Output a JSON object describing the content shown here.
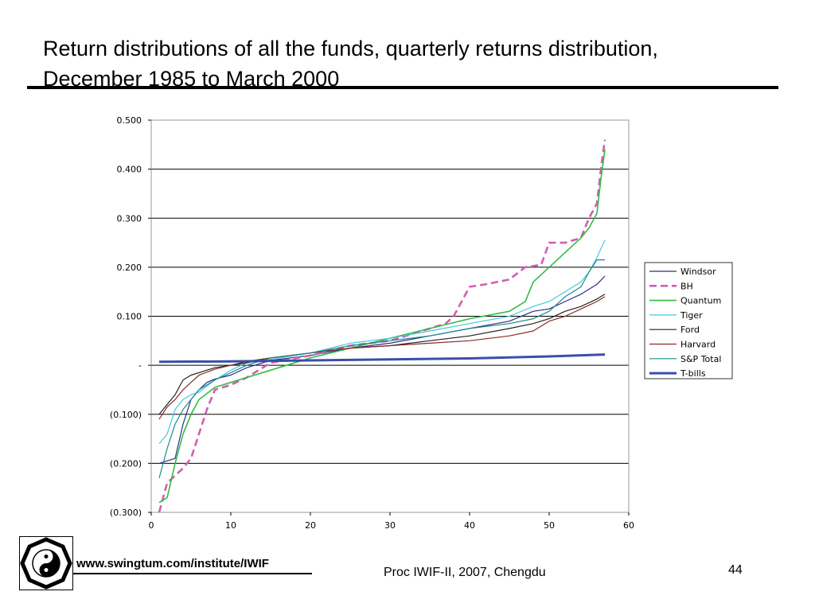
{
  "slide": {
    "title": "Return distributions of all the funds, quarterly returns distribution, December 1985 to March 2000",
    "footer_url": "www.swingtum.com/institute/IWIF",
    "footer_conf": "Proc IWIF-II, 2007, Chengdu",
    "page_number": "44",
    "logo_icon": "yin-yang-bagua-logo-icon"
  },
  "chart_data": {
    "type": "line",
    "title": "",
    "xlabel": "",
    "ylabel": "",
    "xlim": [
      0,
      60
    ],
    "ylim": [
      -0.3,
      0.5
    ],
    "x_ticks": [
      {
        "value": 0,
        "label": "0"
      },
      {
        "value": 10,
        "label": "10"
      },
      {
        "value": 20,
        "label": "20"
      },
      {
        "value": 30,
        "label": "30"
      },
      {
        "value": 40,
        "label": "40"
      },
      {
        "value": 50,
        "label": "50"
      },
      {
        "value": 60,
        "label": "60"
      }
    ],
    "y_ticks": [
      {
        "value": 0.5,
        "label": "0.500"
      },
      {
        "value": 0.4,
        "label": "0.400"
      },
      {
        "value": 0.3,
        "label": "0.300"
      },
      {
        "value": 0.2,
        "label": "0.200"
      },
      {
        "value": 0.1,
        "label": "0.100"
      },
      {
        "value": 0,
        "label": "-"
      },
      {
        "value": -0.1,
        "label": "(0.100)"
      },
      {
        "value": -0.2,
        "label": "(0.200)"
      },
      {
        "value": -0.3,
        "label": "(0.300)"
      }
    ],
    "grid": "horizontal",
    "legend_position": "right",
    "series": [
      {
        "name": "Windsor",
        "color": "#2e2e8a",
        "dash": "",
        "width": 1.2,
        "points": [
          [
            1,
            -0.2
          ],
          [
            2,
            -0.195
          ],
          [
            3,
            -0.19
          ],
          [
            4,
            -0.12
          ],
          [
            5,
            -0.07
          ],
          [
            6,
            -0.05
          ],
          [
            7,
            -0.035
          ],
          [
            8,
            -0.028
          ],
          [
            10,
            -0.02
          ],
          [
            12,
            -0.005
          ],
          [
            15,
            0.01
          ],
          [
            20,
            0.02
          ],
          [
            25,
            0.035
          ],
          [
            30,
            0.045
          ],
          [
            35,
            0.06
          ],
          [
            40,
            0.075
          ],
          [
            45,
            0.09
          ],
          [
            48,
            0.11
          ],
          [
            50,
            0.115
          ],
          [
            52,
            0.13
          ],
          [
            54,
            0.145
          ],
          [
            56,
            0.165
          ],
          [
            57,
            0.182
          ]
        ]
      },
      {
        "name": "BH",
        "color": "#d060b0",
        "dash": "9,5",
        "width": 2.6,
        "points": [
          [
            1,
            -0.3
          ],
          [
            2,
            -0.24
          ],
          [
            3,
            -0.225
          ],
          [
            4,
            -0.21
          ],
          [
            5,
            -0.19
          ],
          [
            6,
            -0.14
          ],
          [
            7,
            -0.09
          ],
          [
            8,
            -0.05
          ],
          [
            10,
            -0.04
          ],
          [
            12,
            -0.025
          ],
          [
            15,
            0.005
          ],
          [
            20,
            0.02
          ],
          [
            25,
            0.04
          ],
          [
            30,
            0.05
          ],
          [
            34,
            0.07
          ],
          [
            37,
            0.085
          ],
          [
            38,
            0.1
          ],
          [
            39,
            0.13
          ],
          [
            40,
            0.16
          ],
          [
            42,
            0.165
          ],
          [
            45,
            0.175
          ],
          [
            47,
            0.2
          ],
          [
            49,
            0.205
          ],
          [
            50,
            0.25
          ],
          [
            52,
            0.25
          ],
          [
            54,
            0.26
          ],
          [
            55,
            0.3
          ],
          [
            56,
            0.33
          ],
          [
            56.5,
            0.4
          ],
          [
            57,
            0.46
          ]
        ]
      },
      {
        "name": "Quantum",
        "color": "#33bb44",
        "dash": "",
        "width": 1.6,
        "points": [
          [
            1,
            -0.28
          ],
          [
            2,
            -0.27
          ],
          [
            3,
            -0.2
          ],
          [
            4,
            -0.14
          ],
          [
            5,
            -0.1
          ],
          [
            6,
            -0.07
          ],
          [
            8,
            -0.045
          ],
          [
            10,
            -0.035
          ],
          [
            12,
            -0.025
          ],
          [
            15,
            -0.01
          ],
          [
            20,
            0.015
          ],
          [
            25,
            0.035
          ],
          [
            30,
            0.055
          ],
          [
            35,
            0.075
          ],
          [
            40,
            0.095
          ],
          [
            45,
            0.11
          ],
          [
            47,
            0.13
          ],
          [
            48,
            0.17
          ],
          [
            50,
            0.2
          ],
          [
            52,
            0.23
          ],
          [
            54,
            0.26
          ],
          [
            55,
            0.28
          ],
          [
            56,
            0.31
          ],
          [
            56.5,
            0.38
          ],
          [
            57,
            0.44
          ]
        ]
      },
      {
        "name": "Tiger",
        "color": "#44c8e0",
        "dash": "",
        "width": 1.2,
        "points": [
          [
            1,
            -0.16
          ],
          [
            2,
            -0.14
          ],
          [
            3,
            -0.09
          ],
          [
            4,
            -0.07
          ],
          [
            5,
            -0.06
          ],
          [
            6,
            -0.055
          ],
          [
            8,
            -0.03
          ],
          [
            10,
            -0.01
          ],
          [
            12,
            0.005
          ],
          [
            15,
            0.012
          ],
          [
            20,
            0.025
          ],
          [
            25,
            0.045
          ],
          [
            30,
            0.055
          ],
          [
            35,
            0.07
          ],
          [
            40,
            0.085
          ],
          [
            45,
            0.1
          ],
          [
            48,
            0.12
          ],
          [
            50,
            0.13
          ],
          [
            52,
            0.15
          ],
          [
            54,
            0.17
          ],
          [
            55,
            0.19
          ],
          [
            56,
            0.22
          ],
          [
            57,
            0.255
          ]
        ]
      },
      {
        "name": "Ford",
        "color": "#222222",
        "dash": "",
        "width": 1.2,
        "points": [
          [
            1,
            -0.1
          ],
          [
            2,
            -0.08
          ],
          [
            3,
            -0.06
          ],
          [
            4,
            -0.03
          ],
          [
            5,
            -0.02
          ],
          [
            6,
            -0.015
          ],
          [
            8,
            -0.005
          ],
          [
            10,
            0.0
          ],
          [
            12,
            0.005
          ],
          [
            15,
            0.015
          ],
          [
            20,
            0.025
          ],
          [
            25,
            0.035
          ],
          [
            30,
            0.04
          ],
          [
            35,
            0.05
          ],
          [
            40,
            0.06
          ],
          [
            45,
            0.075
          ],
          [
            48,
            0.085
          ],
          [
            50,
            0.095
          ],
          [
            52,
            0.11
          ],
          [
            54,
            0.12
          ],
          [
            56,
            0.135
          ],
          [
            57,
            0.145
          ]
        ]
      },
      {
        "name": "Harvard",
        "color": "#8b2a2a",
        "dash": "",
        "width": 1.2,
        "points": [
          [
            1,
            -0.11
          ],
          [
            2,
            -0.085
          ],
          [
            3,
            -0.07
          ],
          [
            4,
            -0.05
          ],
          [
            5,
            -0.035
          ],
          [
            6,
            -0.02
          ],
          [
            8,
            -0.008
          ],
          [
            10,
            0.0
          ],
          [
            12,
            0.008
          ],
          [
            15,
            0.015
          ],
          [
            20,
            0.025
          ],
          [
            25,
            0.035
          ],
          [
            30,
            0.04
          ],
          [
            35,
            0.045
          ],
          [
            40,
            0.05
          ],
          [
            45,
            0.06
          ],
          [
            48,
            0.07
          ],
          [
            50,
            0.09
          ],
          [
            52,
            0.1
          ],
          [
            54,
            0.115
          ],
          [
            56,
            0.13
          ],
          [
            57,
            0.14
          ]
        ]
      },
      {
        "name": "S&P Total",
        "color": "#1f8a8a",
        "dash": "",
        "width": 1.2,
        "points": [
          [
            1,
            -0.23
          ],
          [
            2,
            -0.17
          ],
          [
            3,
            -0.12
          ],
          [
            4,
            -0.09
          ],
          [
            5,
            -0.07
          ],
          [
            6,
            -0.05
          ],
          [
            8,
            -0.03
          ],
          [
            10,
            -0.015
          ],
          [
            12,
            0.0
          ],
          [
            15,
            0.015
          ],
          [
            20,
            0.025
          ],
          [
            25,
            0.04
          ],
          [
            30,
            0.05
          ],
          [
            35,
            0.06
          ],
          [
            40,
            0.075
          ],
          [
            45,
            0.085
          ],
          [
            48,
            0.095
          ],
          [
            50,
            0.11
          ],
          [
            52,
            0.14
          ],
          [
            54,
            0.16
          ],
          [
            55,
            0.19
          ],
          [
            56,
            0.215
          ],
          [
            57,
            0.215
          ]
        ]
      },
      {
        "name": "T-bills",
        "color": "#3a4fa8",
        "dash": "",
        "width": 3,
        "points": [
          [
            1,
            0.007
          ],
          [
            10,
            0.008
          ],
          [
            20,
            0.01
          ],
          [
            30,
            0.012
          ],
          [
            40,
            0.014
          ],
          [
            50,
            0.018
          ],
          [
            57,
            0.022
          ]
        ]
      }
    ]
  }
}
